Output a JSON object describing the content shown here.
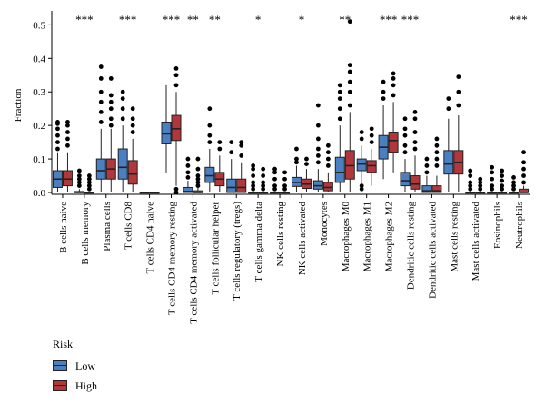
{
  "chart_data": {
    "type": "boxplot",
    "ylabel": "Fraction",
    "ylim": [
      0,
      0.52
    ],
    "yticks": [
      "0.0",
      "0.1",
      "0.2",
      "0.3",
      "0.4",
      "0.5"
    ],
    "grid": false,
    "categories": [
      "B cells naive",
      "B cells memory",
      "Plasma cells",
      "T cells CD8",
      "T cells CD4 naive",
      "T cells CD4 memory resting",
      "T cells CD4 memory activated",
      "T cells follicular helper",
      "T cells regulatory (tregs)",
      "T cells gamma delta",
      "NK cells resting",
      "NK cells activated",
      "Monocytes",
      "Macrophages M0",
      "Macrophages M1",
      "Macrophages M2",
      "Dendritic cells resting",
      "Dendritic cells activated",
      "Mast cells resting",
      "Mast cells activated",
      "Eosinophils",
      "Neutrophils"
    ],
    "significance": [
      "",
      "***",
      "",
      "***",
      "",
      "***",
      "**",
      "**",
      "",
      "*",
      "",
      "*",
      "",
      "**",
      "",
      "***",
      "***",
      "",
      "",
      "",
      "",
      "***"
    ],
    "series": [
      {
        "name": "Low",
        "color": "#4a7fc1",
        "boxes": [
          {
            "min": 0.0,
            "q1": 0.015,
            "median": 0.04,
            "q3": 0.065,
            "max": 0.12,
            "outliers": [
              0.13,
              0.15,
              0.17,
              0.19,
              0.205,
              0.21
            ]
          },
          {
            "min": 0.0,
            "q1": 0.0,
            "median": 0.0,
            "q3": 0.003,
            "max": 0.01,
            "outliers": [
              0.02,
              0.03,
              0.04,
              0.05,
              0.065
            ]
          },
          {
            "min": 0.0,
            "q1": 0.04,
            "median": 0.065,
            "q3": 0.1,
            "max": 0.19,
            "outliers": [
              0.21,
              0.24,
              0.27,
              0.3,
              0.34,
              0.375
            ]
          },
          {
            "min": 0.0,
            "q1": 0.04,
            "median": 0.075,
            "q3": 0.13,
            "max": 0.2,
            "outliers": [
              0.22,
              0.25,
              0.28,
              0.3
            ]
          },
          {
            "min": 0.0,
            "q1": 0.0,
            "median": 0.0,
            "q3": 0.0,
            "max": 0.0,
            "outliers": []
          },
          {
            "min": 0.06,
            "q1": 0.145,
            "median": 0.175,
            "q3": 0.21,
            "max": 0.32,
            "outliers": []
          },
          {
            "min": 0.0,
            "q1": 0.0,
            "median": 0.003,
            "q3": 0.015,
            "max": 0.035,
            "outliers": [
              0.045,
              0.06,
              0.08,
              0.1
            ]
          },
          {
            "min": 0.0,
            "q1": 0.03,
            "median": 0.05,
            "q3": 0.075,
            "max": 0.13,
            "outliers": [
              0.15,
              0.17,
              0.2,
              0.25
            ]
          },
          {
            "min": 0.0,
            "q1": 0.0,
            "median": 0.015,
            "q3": 0.04,
            "max": 0.1,
            "outliers": [
              0.12,
              0.15
            ]
          },
          {
            "min": 0.0,
            "q1": 0.0,
            "median": 0.0,
            "q3": 0.0,
            "max": 0.0,
            "outliers": [
              0.01,
              0.02,
              0.03,
              0.05,
              0.07,
              0.08
            ]
          },
          {
            "min": 0.0,
            "q1": 0.0,
            "median": 0.0,
            "q3": 0.0,
            "max": 0.0,
            "outliers": [
              0.01,
              0.02,
              0.04,
              0.06,
              0.07
            ]
          },
          {
            "min": 0.0,
            "q1": 0.018,
            "median": 0.03,
            "q3": 0.045,
            "max": 0.08,
            "outliers": [
              0.09,
              0.1,
              0.13
            ]
          },
          {
            "min": 0.0,
            "q1": 0.01,
            "median": 0.02,
            "q3": 0.035,
            "max": 0.07,
            "outliers": [
              0.09,
              0.11,
              0.13,
              0.16,
              0.2,
              0.26
            ]
          },
          {
            "min": 0.0,
            "q1": 0.03,
            "median": 0.06,
            "q3": 0.105,
            "max": 0.2,
            "outliers": [
              0.22,
              0.25,
              0.28,
              0.3,
              0.32
            ]
          },
          {
            "min": 0.025,
            "q1": 0.065,
            "median": 0.085,
            "q3": 0.1,
            "max": 0.14,
            "outliers": [
              0.01,
              0.02,
              0.16,
              0.18
            ]
          },
          {
            "min": 0.04,
            "q1": 0.1,
            "median": 0.135,
            "q3": 0.17,
            "max": 0.26,
            "outliers": [
              0.28,
              0.3,
              0.33
            ]
          },
          {
            "min": 0.0,
            "q1": 0.02,
            "median": 0.035,
            "q3": 0.06,
            "max": 0.1,
            "outliers": [
              0.12,
              0.14,
              0.17,
              0.19,
              0.22
            ]
          },
          {
            "min": 0.0,
            "q1": 0.0,
            "median": 0.005,
            "q3": 0.02,
            "max": 0.05,
            "outliers": [
              0.06,
              0.08,
              0.1
            ]
          },
          {
            "min": 0.0,
            "q1": 0.055,
            "median": 0.085,
            "q3": 0.125,
            "max": 0.22,
            "outliers": [
              0.25,
              0.28
            ]
          },
          {
            "min": 0.0,
            "q1": 0.0,
            "median": 0.0,
            "q3": 0.0,
            "max": 0.0,
            "outliers": [
              0.01,
              0.02,
              0.03,
              0.05,
              0.065
            ]
          },
          {
            "min": 0.0,
            "q1": 0.0,
            "median": 0.0,
            "q3": 0.0,
            "max": 0.0,
            "outliers": [
              0.01,
              0.02,
              0.04,
              0.06,
              0.075
            ]
          },
          {
            "min": 0.0,
            "q1": 0.0,
            "median": 0.0,
            "q3": 0.0,
            "max": 0.0,
            "outliers": [
              0.01,
              0.02,
              0.03,
              0.045
            ]
          }
        ]
      },
      {
        "name": "High",
        "color": "#b0383d",
        "boxes": [
          {
            "min": 0.0,
            "q1": 0.02,
            "median": 0.04,
            "q3": 0.065,
            "max": 0.12,
            "outliers": [
              0.14,
              0.16,
              0.18,
              0.2,
              0.21
            ]
          },
          {
            "min": 0.0,
            "q1": 0.0,
            "median": 0.0,
            "q3": 0.0,
            "max": 0.0,
            "outliers": [
              0.01,
              0.02,
              0.03,
              0.04,
              0.05
            ]
          },
          {
            "min": 0.0,
            "q1": 0.04,
            "median": 0.07,
            "q3": 0.1,
            "max": 0.19,
            "outliers": [
              0.2,
              0.22,
              0.25,
              0.27,
              0.29,
              0.34
            ]
          },
          {
            "min": 0.0,
            "q1": 0.025,
            "median": 0.055,
            "q3": 0.095,
            "max": 0.16,
            "outliers": [
              0.18,
              0.2,
              0.22,
              0.25
            ]
          },
          {
            "min": 0.0,
            "q1": 0.0,
            "median": 0.0,
            "q3": 0.0,
            "max": 0.0,
            "outliers": []
          },
          {
            "min": 0.02,
            "q1": 0.155,
            "median": 0.19,
            "q3": 0.23,
            "max": 0.3,
            "outliers": [
              0.0,
              0.01,
              0.32,
              0.35,
              0.37
            ]
          },
          {
            "min": 0.0,
            "q1": 0.0,
            "median": 0.0,
            "q3": 0.005,
            "max": 0.015,
            "outliers": [
              0.02,
              0.03,
              0.04,
              0.05,
              0.07,
              0.1
            ]
          },
          {
            "min": 0.0,
            "q1": 0.02,
            "median": 0.04,
            "q3": 0.06,
            "max": 0.11,
            "outliers": [
              0.13,
              0.15
            ]
          },
          {
            "min": 0.0,
            "q1": 0.0,
            "median": 0.015,
            "q3": 0.04,
            "max": 0.09,
            "outliers": [
              0.11,
              0.14,
              0.15
            ]
          },
          {
            "min": 0.0,
            "q1": 0.0,
            "median": 0.0,
            "q3": 0.0,
            "max": 0.0,
            "outliers": [
              0.01,
              0.02,
              0.03,
              0.05,
              0.07
            ]
          },
          {
            "min": 0.0,
            "q1": 0.0,
            "median": 0.0,
            "q3": 0.0,
            "max": 0.0,
            "outliers": [
              0.01,
              0.02,
              0.04,
              0.06
            ]
          },
          {
            "min": 0.0,
            "q1": 0.012,
            "median": 0.025,
            "q3": 0.04,
            "max": 0.07,
            "outliers": [
              0.085,
              0.1
            ]
          },
          {
            "min": 0.0,
            "q1": 0.005,
            "median": 0.015,
            "q3": 0.03,
            "max": 0.06,
            "outliers": [
              0.08,
              0.1,
              0.12,
              0.14
            ]
          },
          {
            "min": 0.0,
            "q1": 0.04,
            "median": 0.08,
            "q3": 0.125,
            "max": 0.24,
            "outliers": [
              0.26,
              0.3,
              0.33,
              0.36,
              0.38,
              0.51
            ]
          },
          {
            "min": 0.02,
            "q1": 0.06,
            "median": 0.08,
            "q3": 0.095,
            "max": 0.13,
            "outliers": [
              0.15,
              0.17,
              0.19
            ]
          },
          {
            "min": 0.06,
            "q1": 0.12,
            "median": 0.155,
            "q3": 0.18,
            "max": 0.27,
            "outliers": [
              0.29,
              0.32,
              0.34,
              0.355
            ]
          },
          {
            "min": 0.0,
            "q1": 0.01,
            "median": 0.025,
            "q3": 0.05,
            "max": 0.11,
            "outliers": [
              0.13,
              0.15,
              0.18,
              0.22,
              0.24
            ]
          },
          {
            "min": 0.0,
            "q1": 0.0,
            "median": 0.005,
            "q3": 0.02,
            "max": 0.05,
            "outliers": [
              0.08,
              0.1,
              0.12,
              0.14,
              0.16
            ]
          },
          {
            "min": 0.0,
            "q1": 0.055,
            "median": 0.09,
            "q3": 0.125,
            "max": 0.23,
            "outliers": [
              0.26,
              0.3,
              0.345
            ]
          },
          {
            "min": 0.0,
            "q1": 0.0,
            "median": 0.0,
            "q3": 0.0,
            "max": 0.0,
            "outliers": [
              0.01,
              0.02,
              0.03,
              0.04
            ]
          },
          {
            "min": 0.0,
            "q1": 0.0,
            "median": 0.0,
            "q3": 0.0,
            "max": 0.0,
            "outliers": [
              0.01,
              0.02,
              0.035,
              0.05,
              0.065
            ]
          },
          {
            "min": 0.0,
            "q1": 0.0,
            "median": 0.0,
            "q3": 0.01,
            "max": 0.02,
            "outliers": [
              0.03,
              0.05,
              0.07,
              0.09,
              0.12
            ]
          }
        ]
      }
    ]
  },
  "legend": {
    "title": "Risk",
    "items": [
      {
        "label": "Low",
        "color": "#4a7fc1"
      },
      {
        "label": "High",
        "color": "#b0383d"
      }
    ]
  }
}
